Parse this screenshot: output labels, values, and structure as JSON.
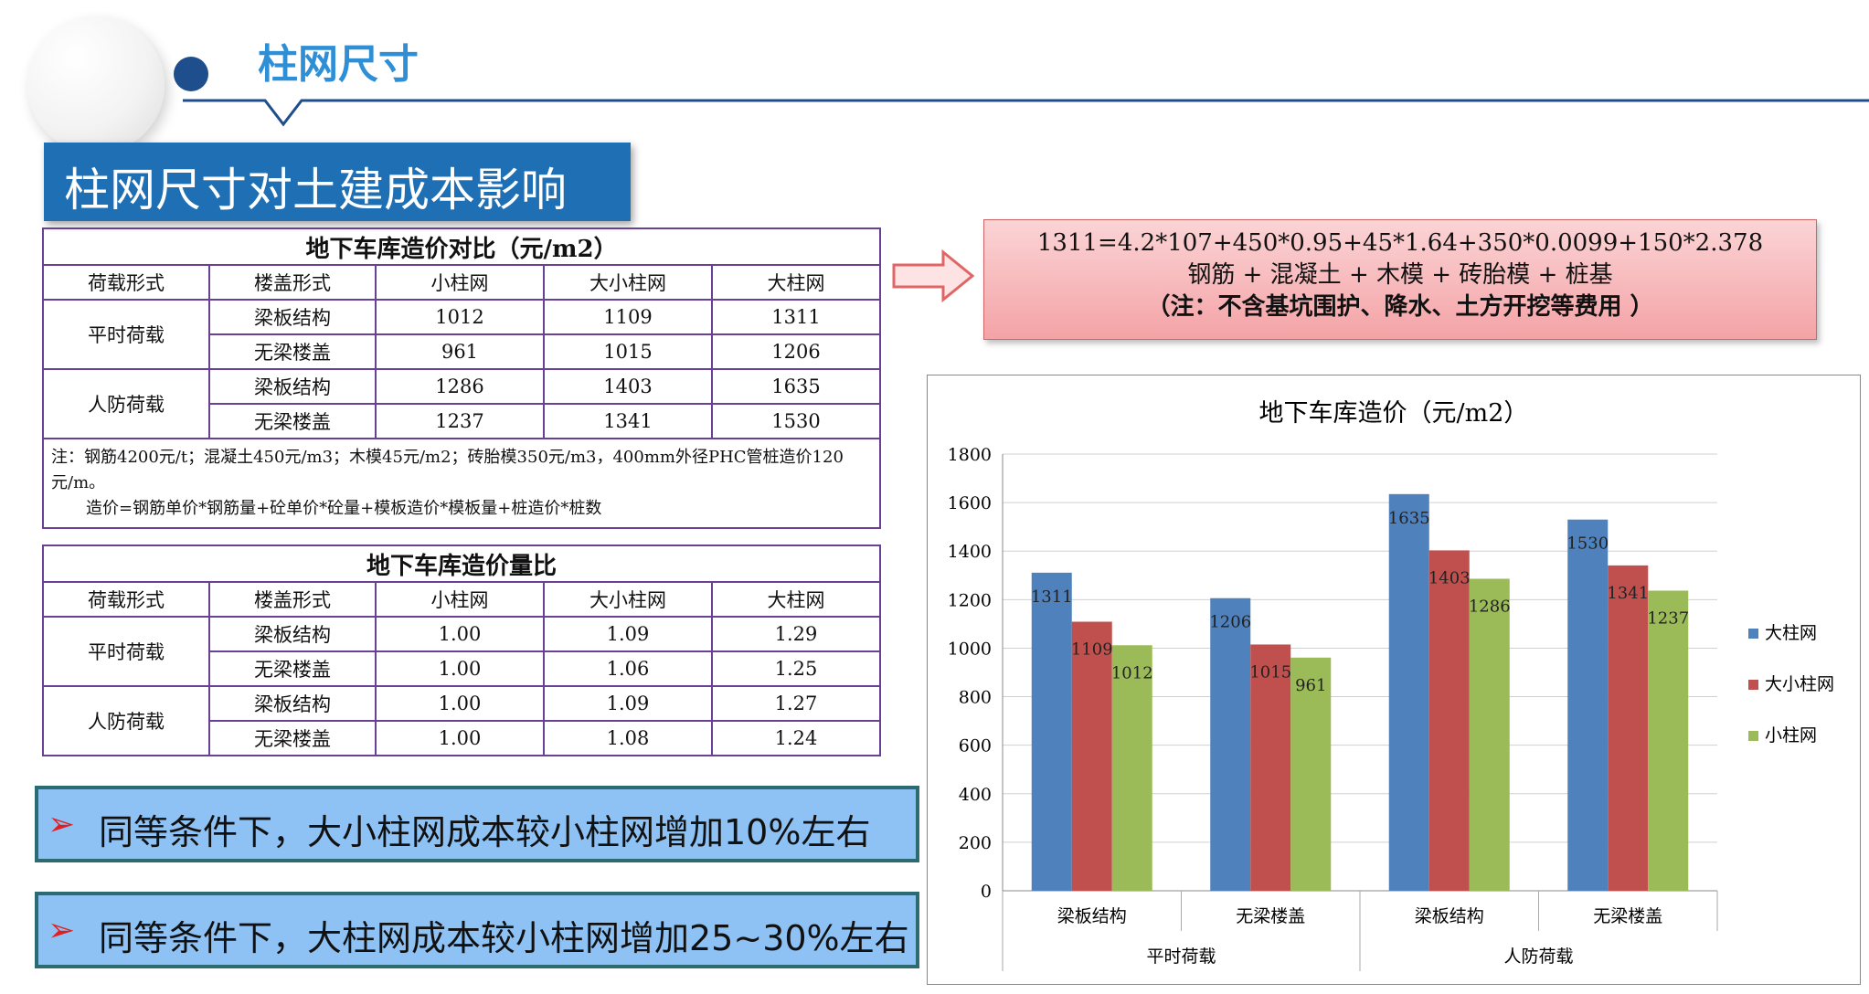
{
  "header": {
    "title": "柱网尺寸"
  },
  "banner": {
    "text": "柱网尺寸对土建成本影响"
  },
  "table1": {
    "caption": "地下车库造价对比（元/m2）",
    "headers": [
      "荷载形式",
      "楼盖形式",
      "小柱网",
      "大小柱网",
      "大柱网"
    ],
    "groups": [
      {
        "load": "平时荷载",
        "rows": [
          {
            "type": "梁板结构",
            "v": [
              "1012",
              "1109",
              "1311"
            ]
          },
          {
            "type": "无梁楼盖",
            "v": [
              "961",
              "1015",
              "1206"
            ]
          }
        ]
      },
      {
        "load": "人防荷载",
        "rows": [
          {
            "type": "梁板结构",
            "v": [
              "1286",
              "1403",
              "1635"
            ]
          },
          {
            "type": "无梁楼盖",
            "v": [
              "1237",
              "1341",
              "1530"
            ]
          }
        ]
      }
    ],
    "note1": "注：钢筋4200元/t；混凝土450元/m3；木模45元/m2；砖胎模350元/m3，400mm外径PHC管桩造价120元/m。",
    "note2": "造价=钢筋单价*钢筋量+砼单价*砼量+模板造价*模板量+桩造价*桩数"
  },
  "table2": {
    "caption": "地下车库造价量比",
    "headers": [
      "荷载形式",
      "楼盖形式",
      "小柱网",
      "大小柱网",
      "大柱网"
    ],
    "groups": [
      {
        "load": "平时荷载",
        "rows": [
          {
            "type": "梁板结构",
            "v": [
              "1.00",
              "1.09",
              "1.29"
            ]
          },
          {
            "type": "无梁楼盖",
            "v": [
              "1.00",
              "1.06",
              "1.25"
            ]
          }
        ]
      },
      {
        "load": "人防荷载",
        "rows": [
          {
            "type": "梁板结构",
            "v": [
              "1.00",
              "1.09",
              "1.27"
            ]
          },
          {
            "type": "无梁楼盖",
            "v": [
              "1.00",
              "1.08",
              "1.24"
            ]
          }
        ]
      }
    ]
  },
  "formula": {
    "line1": "1311=4.2*107+450*0.95+45*1.64+350*0.0099+150*2.378",
    "line2": "钢筋 + 混凝土 +  木模 +  砖胎模 +  桩基",
    "line3": "（注：不含基坑围护、降水、土方开挖等费用 ）"
  },
  "conclusions": [
    "同等条件下，大小柱网成本较小柱网增加10%左右",
    "同等条件下，大柱网成本较小柱网增加25~30%左右"
  ],
  "colors": {
    "blue": "#4f81bd",
    "red": "#c0504d",
    "green": "#9bbb59",
    "accent": "#1f6fb5"
  },
  "chart_data": {
    "type": "bar",
    "title": "地下车库造价（元/m2）",
    "categories": [
      "梁板结构",
      "无梁楼盖",
      "梁板结构",
      "无梁楼盖"
    ],
    "groups": [
      {
        "label": "平时荷载",
        "span": [
          0,
          1
        ]
      },
      {
        "label": "人防荷载",
        "span": [
          2,
          3
        ]
      }
    ],
    "series": [
      {
        "name": "大柱网",
        "color": "#4f81bd",
        "values": [
          1311,
          1206,
          1635,
          1530
        ]
      },
      {
        "name": "大小柱网",
        "color": "#c0504d",
        "values": [
          1109,
          1015,
          1403,
          1341
        ]
      },
      {
        "name": "小柱网",
        "color": "#9bbb59",
        "values": [
          1012,
          961,
          1286,
          1237
        ]
      }
    ],
    "ylim": [
      0,
      1800
    ],
    "yticks": [
      0,
      200,
      400,
      600,
      800,
      1000,
      1200,
      1400,
      1600,
      1800
    ],
    "grid": true,
    "legend": "right"
  }
}
